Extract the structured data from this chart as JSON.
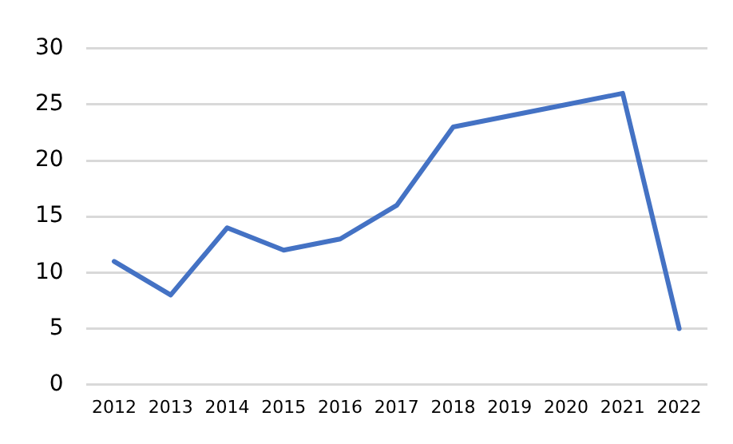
{
  "chart_data": {
    "type": "line",
    "categories": [
      "2012",
      "2013",
      "2014",
      "2015",
      "2016",
      "2017",
      "2018",
      "2019",
      "2020",
      "2021",
      "2022"
    ],
    "series": [
      {
        "color": "#4472c4",
        "values": [
          11,
          8,
          14,
          12,
          13,
          16,
          23,
          24,
          25,
          26,
          5
        ]
      }
    ],
    "ylim": [
      0,
      30
    ],
    "yticks": [
      0,
      5,
      10,
      15,
      20,
      25,
      30
    ],
    "grid": "y",
    "marker": "none",
    "line_style": "solid"
  }
}
